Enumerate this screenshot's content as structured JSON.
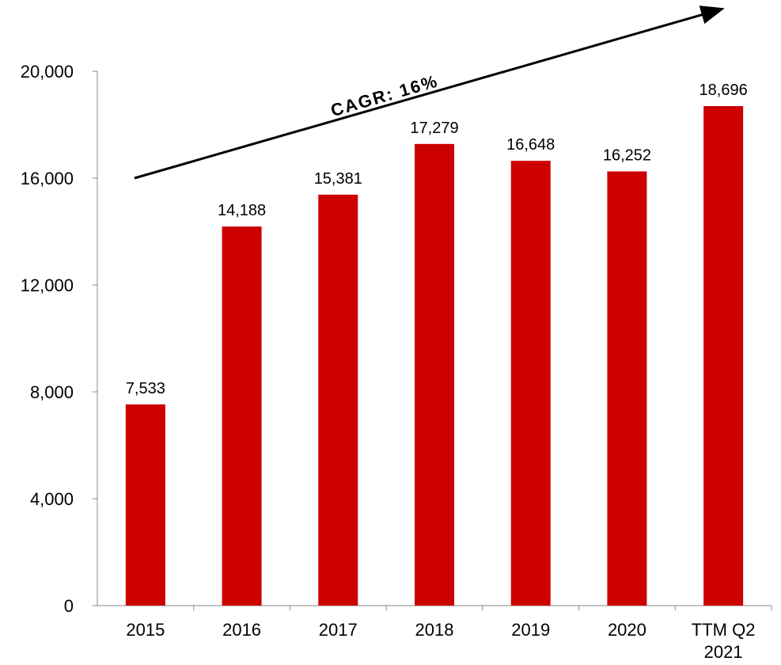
{
  "chart_data": {
    "type": "bar",
    "categories": [
      "2015",
      "2016",
      "2017",
      "2018",
      "2019",
      "2020",
      "TTM Q2\n2021"
    ],
    "values": [
      7533,
      14188,
      15381,
      17279,
      16648,
      16252,
      18696
    ],
    "data_labels": [
      "7,533",
      "14,188",
      "15,381",
      "17,279",
      "16,648",
      "16,252",
      "18,696"
    ],
    "ylim": [
      0,
      20000
    ],
    "yticks": [
      0,
      4000,
      8000,
      12000,
      16000,
      20000
    ],
    "ytick_labels": [
      "0",
      "4,000",
      "8,000",
      "12,000",
      "16,000",
      "20,000"
    ],
    "title": "",
    "xlabel": "",
    "ylabel": "",
    "grid": false,
    "bar_color": "#cc0000",
    "annotation": "CAGR: 16%"
  }
}
